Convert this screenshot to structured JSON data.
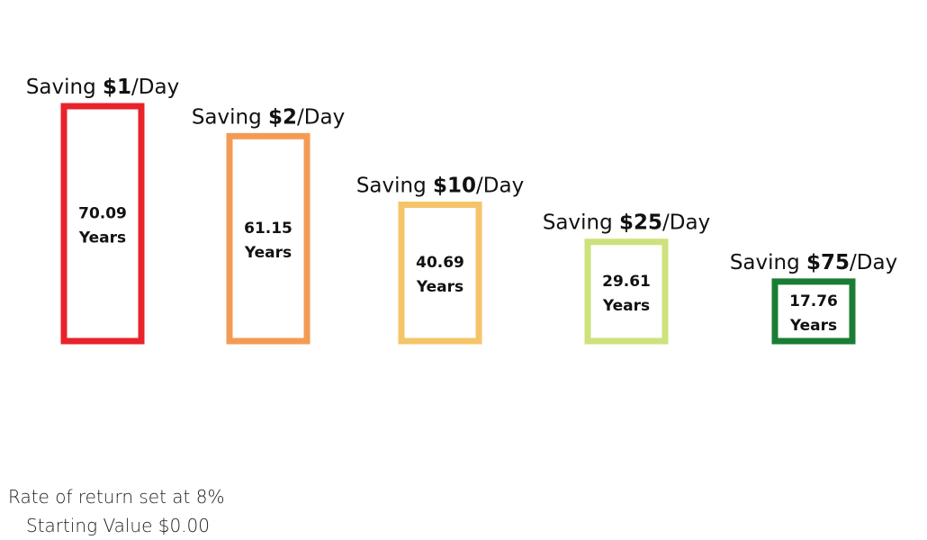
{
  "chart_data": {
    "type": "bar",
    "title": "",
    "xlabel": "",
    "ylabel": "",
    "ylim": [
      0,
      75
    ],
    "grid": false,
    "categories": [
      "$1",
      "$2",
      "$10",
      "$25",
      "$75"
    ],
    "values": [
      70.09,
      61.15,
      40.69,
      29.61,
      17.76
    ],
    "label_prefix": "Saving ",
    "label_suffix": "/Day",
    "value_unit": "Years",
    "value_labels": [
      "70.09",
      "61.15",
      "40.69",
      "29.61",
      "17.76"
    ],
    "colors": [
      "#e8232a",
      "#f39b55",
      "#f6c468",
      "#cde27a",
      "#1a7c35"
    ]
  },
  "notes": {
    "rate": "Rate of return set at 8%",
    "start": "Starting Value $0.00"
  }
}
